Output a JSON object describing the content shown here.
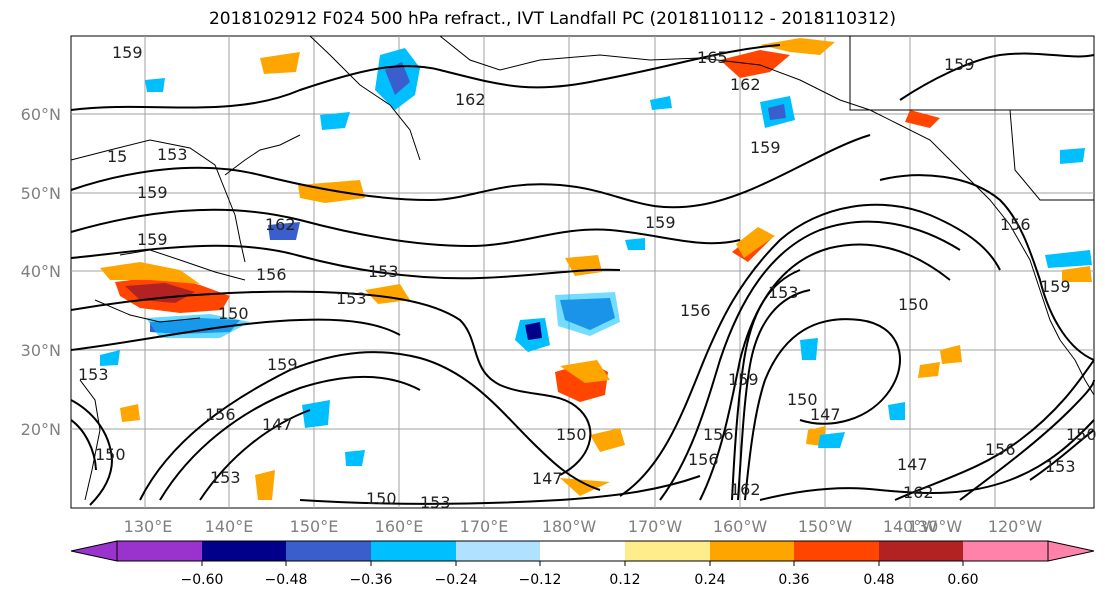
{
  "title": "2018102912 F024 500 hPa refract., IVT Landfall PC (2018110112 - 2018110312)",
  "lat_labels": [
    "60°N",
    "50°N",
    "40°N",
    "30°N",
    "20°N"
  ],
  "lon_labels": [
    "130°E",
    "140°E",
    "150°E",
    "160°E",
    "170°E",
    "180°W",
    "170°W",
    "160°W",
    "150°W",
    "140°W",
    "130°W",
    "120°W"
  ],
  "contour_labels": [
    "159",
    "165",
    "162",
    "159",
    "162",
    "159",
    "153",
    "15",
    "159",
    "162",
    "159",
    "156",
    "153",
    "153",
    "150",
    "159",
    "156",
    "153",
    "150",
    "159",
    "147",
    "150",
    "147",
    "150",
    "153",
    "147",
    "150",
    "153",
    "159",
    "156",
    "162",
    "156",
    "150",
    "147",
    "156",
    "159",
    "162",
    "156",
    "150",
    "153",
    "156",
    "153"
  ],
  "colorbar": {
    "tick_labels": [
      "−0.60",
      "−0.48",
      "−0.36",
      "−0.24",
      "−0.12",
      "0.12",
      "0.24",
      "0.36",
      "0.48",
      "0.60"
    ],
    "colors": [
      "#9a32cd",
      "#00008b",
      "#3a5fcd",
      "#00bfff",
      "#b0e2ff",
      "#ffffff",
      "#ffec8b",
      "#ffa500",
      "#ff4500",
      "#b22222",
      "#ff82ab"
    ]
  },
  "colors": {
    "contour": "#000000",
    "grid": "#a0a0a0",
    "axis_label": "#808080"
  }
}
